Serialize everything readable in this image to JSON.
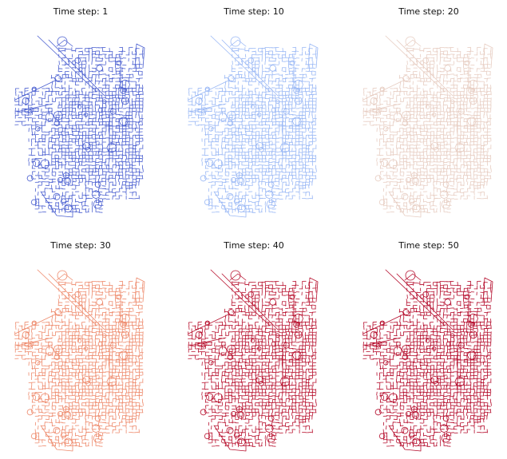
{
  "panels": [
    {
      "title": "Time step: 1",
      "color": "#4a5fd0"
    },
    {
      "title": "Time step: 10",
      "color": "#9ab8f5"
    },
    {
      "title": "Time step: 20",
      "color": "#e7cdc2"
    },
    {
      "title": "Time step: 30",
      "color": "#ee8a6c"
    },
    {
      "title": "Time step: 40",
      "color": "#b8122f"
    },
    {
      "title": "Time step: 50",
      "color": "#b40a2a"
    }
  ]
}
